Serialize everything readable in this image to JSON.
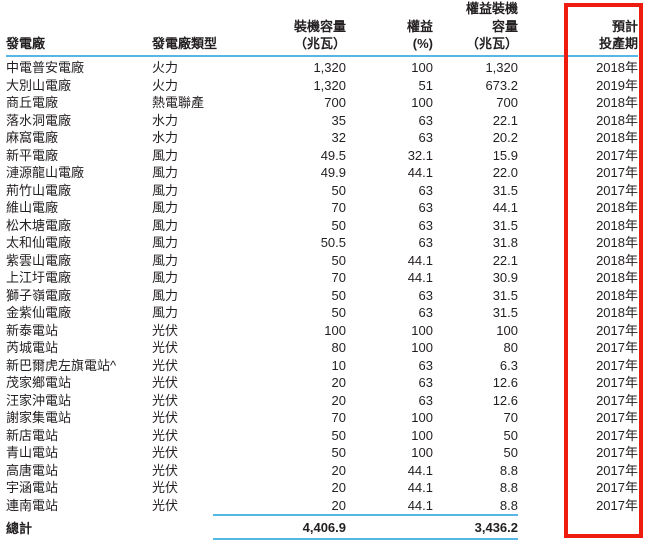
{
  "colors": {
    "rule_blue": "#54b7e5",
    "highlight_red": "#ee1c0f",
    "text": "#231f20"
  },
  "table": {
    "columns": [
      {
        "key": "plant",
        "label": "發電廠"
      },
      {
        "key": "type",
        "label": "發電廠類型"
      },
      {
        "key": "capacity_mw",
        "label": "裝機容量\n（兆瓦）"
      },
      {
        "key": "equity_pct",
        "label": "權益\n(%)"
      },
      {
        "key": "equity_capacity",
        "label": "權益裝機\n容量\n（兆瓦）"
      },
      {
        "key": "expected_date",
        "label": "預計\n投產期"
      }
    ],
    "rows": [
      [
        "中電普安電廠",
        "火力",
        "1,320",
        "100",
        "1,320",
        "2018年"
      ],
      [
        "大別山電廠",
        "火力",
        "1,320",
        "51",
        "673.2",
        "2019年"
      ],
      [
        "商丘電廠",
        "熱電聯產",
        "700",
        "100",
        "700",
        "2018年"
      ],
      [
        "落水洞電廠",
        "水力",
        "35",
        "63",
        "22.1",
        "2018年"
      ],
      [
        "麻窩電廠",
        "水力",
        "32",
        "63",
        "20.2",
        "2018年"
      ],
      [
        "新平電廠",
        "風力",
        "49.5",
        "32.1",
        "15.9",
        "2017年"
      ],
      [
        "漣源龍山電廠",
        "風力",
        "49.9",
        "44.1",
        "22.0",
        "2017年"
      ],
      [
        "荊竹山電廠",
        "風力",
        "50",
        "63",
        "31.5",
        "2017年"
      ],
      [
        "維山電廠",
        "風力",
        "70",
        "63",
        "44.1",
        "2018年"
      ],
      [
        "松木塘電廠",
        "風力",
        "50",
        "63",
        "31.5",
        "2018年"
      ],
      [
        "太和仙電廠",
        "風力",
        "50.5",
        "63",
        "31.8",
        "2018年"
      ],
      [
        "紫雲山電廠",
        "風力",
        "50",
        "44.1",
        "22.1",
        "2018年"
      ],
      [
        "上江圩電廠",
        "風力",
        "70",
        "44.1",
        "30.9",
        "2018年"
      ],
      [
        "獅子嶺電廠",
        "風力",
        "50",
        "63",
        "31.5",
        "2018年"
      ],
      [
        "金紫仙電廠",
        "風力",
        "50",
        "63",
        "31.5",
        "2018年"
      ],
      [
        "新泰電站",
        "光伏",
        "100",
        "100",
        "100",
        "2017年"
      ],
      [
        "芮城電站",
        "光伏",
        "80",
        "100",
        "80",
        "2017年"
      ],
      [
        "新巴爾虎左旗電站^",
        "光伏",
        "10",
        "63",
        "6.3",
        "2017年"
      ],
      [
        "茂家鄉電站",
        "光伏",
        "20",
        "63",
        "12.6",
        "2017年"
      ],
      [
        "汪家沖電站",
        "光伏",
        "20",
        "63",
        "12.6",
        "2017年"
      ],
      [
        "謝家集電站",
        "光伏",
        "70",
        "100",
        "70",
        "2017年"
      ],
      [
        "新店電站",
        "光伏",
        "50",
        "100",
        "50",
        "2017年"
      ],
      [
        "青山電站",
        "光伏",
        "50",
        "100",
        "50",
        "2017年"
      ],
      [
        "高唐電站",
        "光伏",
        "20",
        "44.1",
        "8.8",
        "2017年"
      ],
      [
        "宇涵電站",
        "光伏",
        "20",
        "44.1",
        "8.8",
        "2017年"
      ],
      [
        "連南電站",
        "光伏",
        "20",
        "44.1",
        "8.8",
        "2017年"
      ]
    ],
    "total": {
      "label": "總計",
      "capacity_mw": "4,406.9",
      "equity_capacity": "3,436.2"
    }
  }
}
